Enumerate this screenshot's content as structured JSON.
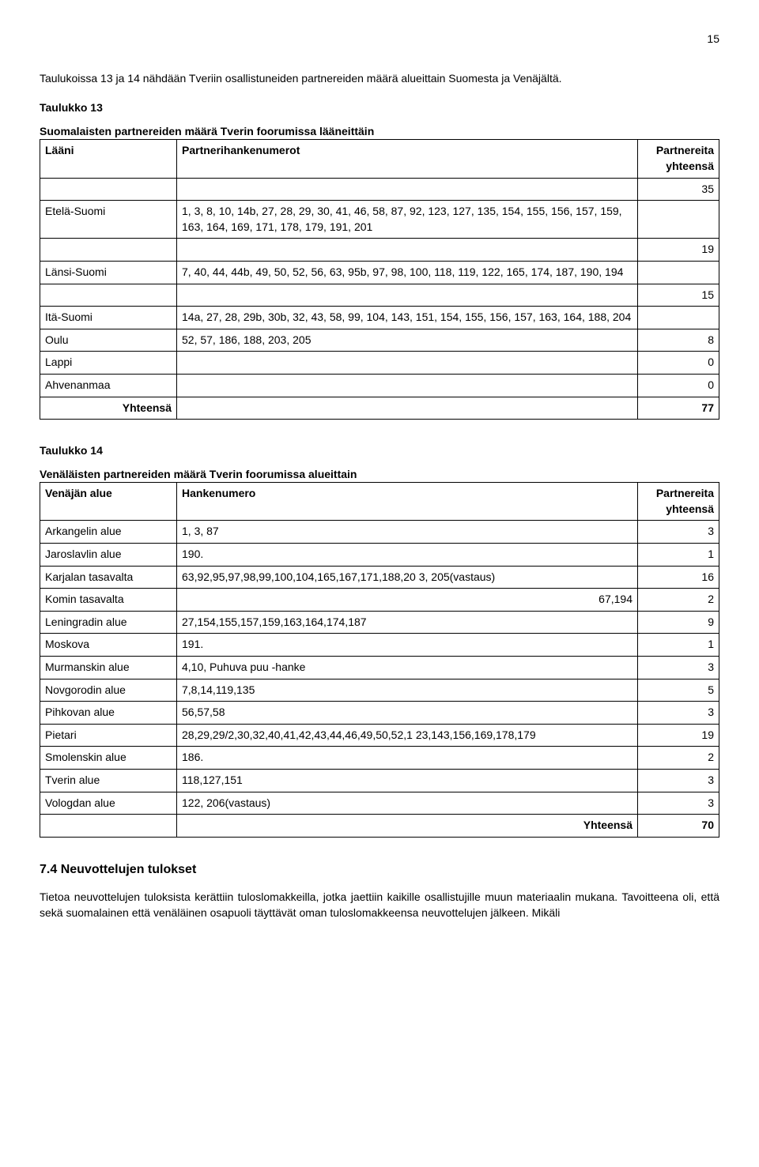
{
  "page_number": "15",
  "intro_para": "Taulukoissa 13 ja 14 nähdään Tveriin osallistuneiden partnereiden määrä alueittain Suomesta ja Venäjältä.",
  "t13": {
    "caption1": "Taulukko 13",
    "caption2": "Suomalaisten partnereiden määrä Tverin foorumissa lääneittäin",
    "col1": "Lääni",
    "col2": "Partnerihankenumerot",
    "col3": "Partnereita yhteensä",
    "rows": [
      {
        "l": "",
        "h": "",
        "n": "35"
      },
      {
        "l": "Etelä-Suomi",
        "h": "1, 3, 8, 10, 14b, 27, 28, 29, 30, 41, 46, 58, 87, 92, 123, 127, 135, 154, 155, 156, 157, 159, 163, 164, 169, 171, 178, 179, 191, 201",
        "n": ""
      },
      {
        "l": "",
        "h": "",
        "n": "19"
      },
      {
        "l": "Länsi-Suomi",
        "h": "7, 40, 44, 44b, 49, 50, 52, 56, 63, 95b, 97, 98, 100, 118, 119, 122, 165, 174, 187, 190, 194",
        "n": ""
      },
      {
        "l": "",
        "h": "",
        "n": "15"
      },
      {
        "l": "Itä-Suomi",
        "h": "14a, 27, 28, 29b, 30b, 32, 43, 58, 99, 104, 143, 151, 154, 155, 156, 157, 163, 164, 188, 204",
        "n": ""
      },
      {
        "l": "Oulu",
        "h": "52, 57, 186, 188, 203, 205",
        "n": "8"
      },
      {
        "l": "Lappi",
        "h": "",
        "n": "0"
      },
      {
        "l": "Ahvenanmaa",
        "h": "",
        "n": "0"
      }
    ],
    "total_label": "Yhteensä",
    "total_n": "77"
  },
  "t14": {
    "caption1": "Taulukko 14",
    "caption2": "Venäläisten partnereiden määrä Tverin foorumissa alueittain",
    "col1": "Venäjän alue",
    "col2": "Hankenumero",
    "col3": "Partnereita yhteensä",
    "rows": [
      {
        "l": "Arkangelin alue",
        "h": "1, 3, 87",
        "n": "3"
      },
      {
        "l": "Jaroslavlin alue",
        "h": "190.",
        "n": "1"
      },
      {
        "l": "Karjalan tasavalta",
        "h": "63,92,95,97,98,99,100,104,165,167,171,188,20\n3, 205(vastaus)",
        "n": "16"
      },
      {
        "l": "Komin tasavalta",
        "h": "67,194",
        "h_align": "right",
        "n": "2"
      },
      {
        "l": "Leningradin alue",
        "h": "27,154,155,157,159,163,164,174,187",
        "n": "9"
      },
      {
        "l": "Moskova",
        "h": "191.",
        "n": "1"
      },
      {
        "l": "Murmanskin alue",
        "h": "4,10, Puhuva puu -hanke",
        "n": "3"
      },
      {
        "l": "Novgorodin alue",
        "h": "7,8,14,119,135",
        "n": "5"
      },
      {
        "l": "Pihkovan alue",
        "h": "56,57,58",
        "n": "3"
      },
      {
        "l": "Pietari",
        "h": "28,29,29/2,30,32,40,41,42,43,44,46,49,50,52,1\n23,143,156,169,178,179",
        "n": "19"
      },
      {
        "l": "Smolenskin alue",
        "h": "186.",
        "n": "2"
      },
      {
        "l": "Tverin alue",
        "h": "118,127,151",
        "n": "3"
      },
      {
        "l": "Vologdan alue",
        "h": "122, 206(vastaus)",
        "n": "3"
      }
    ],
    "total_label": "Yhteensä",
    "total_n": "70"
  },
  "section_head": "7.4 Neuvottelujen tulokset",
  "final_para": "Tietoa neuvottelujen tuloksista kerättiin tuloslomakkeilla, jotka jaettiin kaikille osallistujille muun materiaalin mukana. Tavoitteena oli, että sekä suomalainen että venäläinen osapuoli täyttävät oman tuloslomakkeensa neuvottelujen jälkeen. Mikäli"
}
